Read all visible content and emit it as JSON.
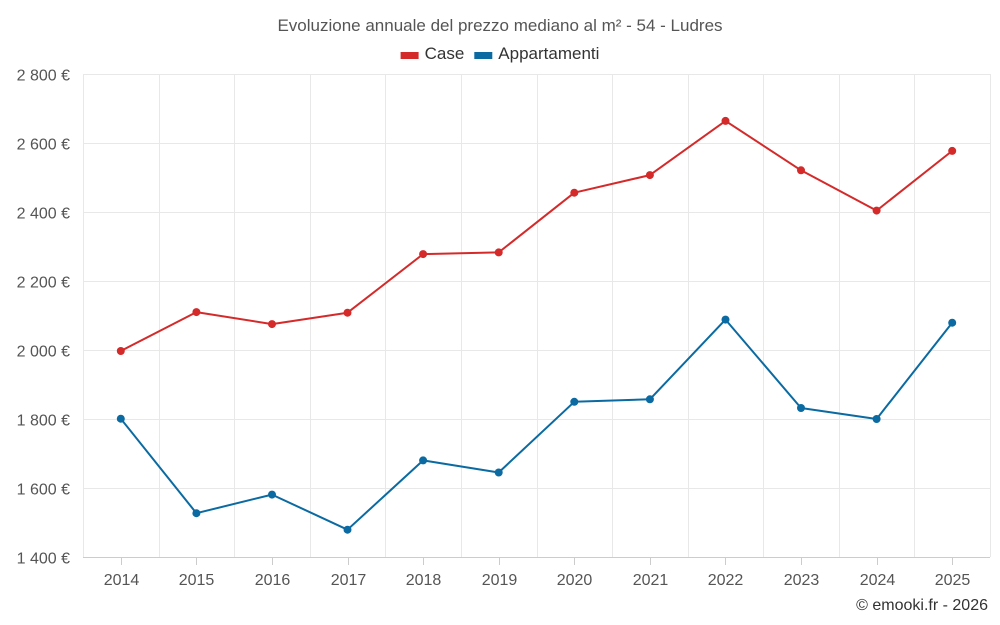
{
  "chart_data": {
    "type": "line",
    "title": "Evoluzione annuale del prezzo mediano al m² - 54 - Ludres",
    "categories": [
      "2014",
      "2015",
      "2016",
      "2017",
      "2018",
      "2019",
      "2020",
      "2021",
      "2022",
      "2023",
      "2024",
      "2025"
    ],
    "series": [
      {
        "name": "Case",
        "color": "#d42a2a",
        "values": [
          1997,
          2110,
          2075,
          2108,
          2278,
          2283,
          2456,
          2507,
          2664,
          2521,
          2404,
          2577
        ]
      },
      {
        "name": "Appartamenti",
        "color": "#0a6aa1",
        "values": [
          1801,
          1527,
          1581,
          1479,
          1680,
          1645,
          1850,
          1857,
          2088,
          1832,
          1800,
          2079
        ]
      }
    ],
    "ylim": [
      1400,
      2800
    ],
    "yticks": [
      1400,
      1600,
      1800,
      2000,
      2200,
      2400,
      2600,
      2800
    ],
    "ytick_labels": [
      "1 400 €",
      "1 600 €",
      "1 800 €",
      "2 000 €",
      "2 200 €",
      "2 400 €",
      "2 600 €",
      "2 800 €"
    ],
    "xlabel": "",
    "ylabel": "",
    "grid": true,
    "legend_position": "top-center"
  },
  "credit": "© emooki.fr - 2026"
}
